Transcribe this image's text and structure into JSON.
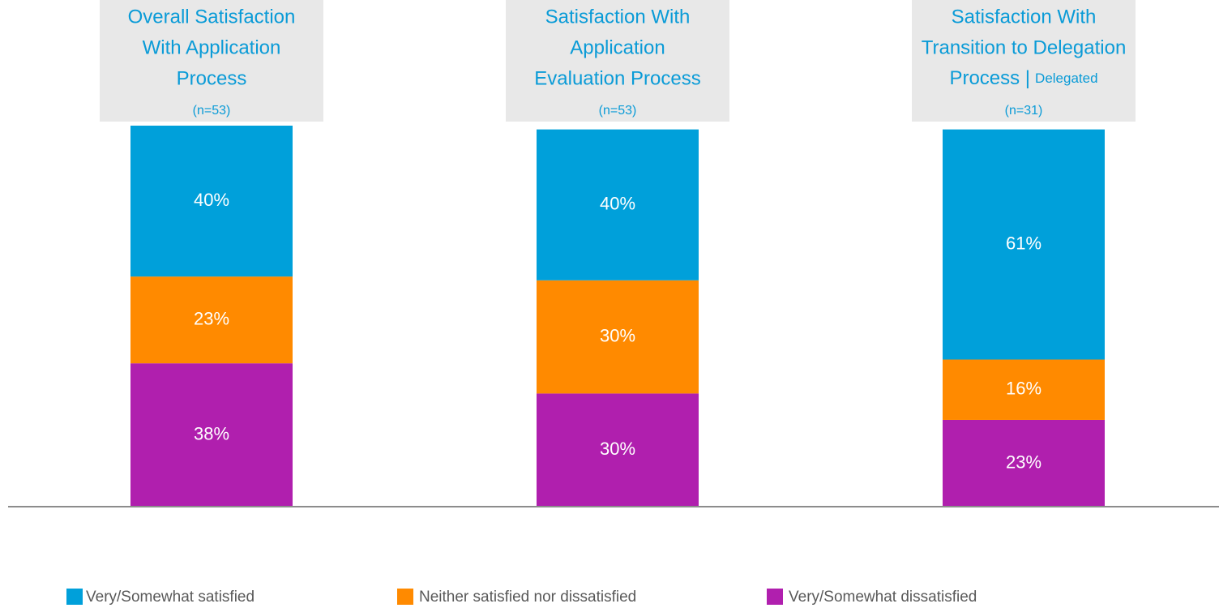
{
  "chart_data": {
    "type": "stacked_bar",
    "categories": [
      [
        "Overall Satisfaction",
        "With Application",
        "Process"
      ],
      [
        "Satisfaction With",
        "Application",
        "Evaluation Process"
      ],
      [
        "Satisfaction With",
        "Transition to Delegation",
        "Process |"
      ]
    ],
    "category_tags": [
      null,
      null,
      "Delegated"
    ],
    "sample_sizes": [
      "(n=53)",
      "(n=53)",
      "(n=31)"
    ],
    "series": [
      {
        "name": "Very/Somewhat satisfied",
        "color": "#00a0da",
        "values": [
          40,
          40,
          61
        ],
        "value_labels": [
          "40%",
          "40%",
          "61%"
        ]
      },
      {
        "name": "Neither satisfied nor dissatisfied",
        "color": "#ff8a00",
        "values": [
          23,
          30,
          16
        ],
        "value_labels": [
          "23%",
          "30%",
          "16%"
        ]
      },
      {
        "name": "Very/Somewhat dissatisfied",
        "color": "#b01fae",
        "values": [
          38,
          30,
          23
        ],
        "value_labels": [
          "38%",
          "30%",
          "23%"
        ]
      }
    ],
    "ylim": [
      0,
      101
    ]
  }
}
